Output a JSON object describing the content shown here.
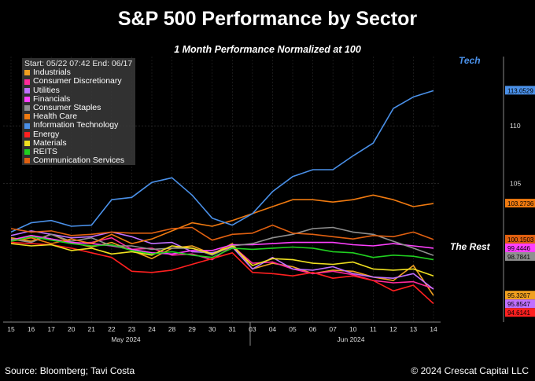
{
  "title": "S&P 500 Performance by Sector",
  "subtitle": "1 Month Performance Normalized at 100",
  "footer": {
    "source": "Source: Bloomberg; Tavi Costa",
    "copyright": "© 2024 Crescat Capital LLC"
  },
  "annotations": {
    "tech": "Tech",
    "rest": "The Rest"
  },
  "chart_data": {
    "type": "line",
    "legend": {
      "header": "Start: 05/22 07:42 End: 06/17",
      "placement": "top-left"
    },
    "x_tick_labels": [
      "15",
      "16",
      "17",
      "20",
      "21",
      "22",
      "23",
      "24",
      "28",
      "29",
      "30",
      "31",
      "03",
      "04",
      "05",
      "06",
      "07",
      "10",
      "11",
      "12",
      "13",
      "14"
    ],
    "x_month_labels": [
      "May 2024",
      "Jun 2024"
    ],
    "y_tick_labels": [
      "110",
      "105"
    ],
    "ylim": [
      93,
      116
    ],
    "grid": true,
    "series": [
      {
        "name": "Industrials",
        "color": "#f0a020",
        "last_label": "95.3267",
        "values": [
          100.3,
          100.0,
          100.6,
          99.9,
          99.5,
          99.9,
          99.2,
          98.5,
          99.4,
          99.6,
          98.9,
          99.8,
          97.6,
          98.1,
          97.8,
          97.2,
          97.5,
          97.4,
          96.9,
          96.6,
          97.9,
          95.3
        ]
      },
      {
        "name": "Consumer Discretionary",
        "color": "#ff2a9a",
        "last_label": "",
        "values": [
          100.1,
          100.5,
          100.2,
          99.8,
          99.9,
          100.3,
          99.3,
          99.4,
          98.8,
          98.9,
          98.4,
          99.6,
          98.1,
          98.2,
          97.6,
          97.2,
          97.4,
          97.1,
          96.6,
          96.4,
          96.5,
          95.9
        ]
      },
      {
        "name": "Utilities",
        "color": "#c070ff",
        "last_label": "95.8547",
        "values": [
          100.5,
          100.9,
          100.6,
          100.3,
          100.4,
          100.8,
          100.4,
          99.8,
          99.9,
          99.1,
          99.0,
          99.5,
          97.6,
          98.6,
          97.6,
          97.5,
          97.8,
          97.2,
          96.9,
          96.8,
          97.2,
          95.85
        ]
      },
      {
        "name": "Financials",
        "color": "#ff40ff",
        "last_label": "99.4446",
        "values": [
          100.1,
          100.5,
          100.2,
          99.9,
          99.8,
          99.6,
          99.3,
          99.0,
          98.9,
          99.2,
          99.2,
          99.7,
          99.7,
          99.8,
          99.9,
          99.9,
          99.9,
          99.7,
          99.6,
          99.8,
          99.6,
          99.4
        ]
      },
      {
        "name": "Consumer Staples",
        "color": "#909090",
        "last_label": "98.7841",
        "values": [
          100.2,
          99.9,
          100.6,
          100.0,
          100.3,
          99.6,
          99.6,
          99.3,
          99.4,
          99.4,
          98.8,
          99.6,
          99.8,
          100.3,
          100.6,
          101.1,
          101.2,
          100.8,
          100.6,
          100.0,
          99.4,
          98.78
        ]
      },
      {
        "name": "Health Care",
        "color": "#f07a10",
        "last_label": "103.2736",
        "values": [
          100.0,
          100.3,
          99.8,
          100.2,
          99.8,
          100.6,
          99.8,
          100.2,
          100.9,
          101.6,
          101.3,
          101.8,
          102.4,
          103.0,
          103.6,
          103.6,
          103.4,
          103.6,
          104.0,
          103.6,
          103.0,
          103.27
        ]
      },
      {
        "name": "Information Technology",
        "color": "#4a90e8",
        "last_label": "113.0529",
        "values": [
          100.8,
          101.6,
          101.8,
          101.3,
          101.4,
          103.6,
          103.8,
          105.1,
          105.5,
          104.0,
          102.0,
          101.4,
          102.4,
          104.3,
          105.6,
          106.2,
          106.2,
          107.4,
          108.5,
          111.5,
          112.5,
          113.05
        ]
      },
      {
        "name": "Energy",
        "color": "#ff2020",
        "last_label": "94.6141",
        "values": [
          99.9,
          99.8,
          99.7,
          99.4,
          99.0,
          98.6,
          97.4,
          97.3,
          97.5,
          98.0,
          98.5,
          99.0,
          97.3,
          97.2,
          97.0,
          97.3,
          96.8,
          97.0,
          96.6,
          95.7,
          96.2,
          94.6
        ]
      },
      {
        "name": "Materials",
        "color": "#f0e020",
        "last_label": "",
        "values": [
          99.8,
          99.6,
          99.7,
          99.2,
          99.4,
          98.9,
          99.1,
          98.8,
          99.6,
          99.4,
          98.9,
          99.6,
          97.9,
          98.5,
          98.4,
          98.1,
          98.0,
          98.2,
          97.6,
          97.5,
          97.6,
          97.0
        ]
      },
      {
        "name": "REITS",
        "color": "#20d020",
        "last_label": "",
        "values": [
          100.0,
          100.4,
          100.1,
          99.8,
          99.6,
          99.7,
          99.2,
          98.9,
          99.1,
          98.8,
          98.6,
          99.4,
          99.3,
          99.4,
          99.5,
          99.4,
          99.1,
          99.0,
          98.6,
          98.8,
          98.7,
          98.4
        ]
      },
      {
        "name": "Communication Services",
        "color": "#e06010",
        "last_label": "100.1503",
        "values": [
          101.1,
          100.8,
          100.9,
          100.5,
          100.6,
          100.8,
          100.7,
          100.7,
          101.1,
          101.2,
          100.1,
          100.6,
          100.7,
          101.4,
          100.7,
          100.6,
          100.4,
          100.2,
          100.5,
          100.4,
          100.8,
          100.15
        ]
      }
    ]
  }
}
